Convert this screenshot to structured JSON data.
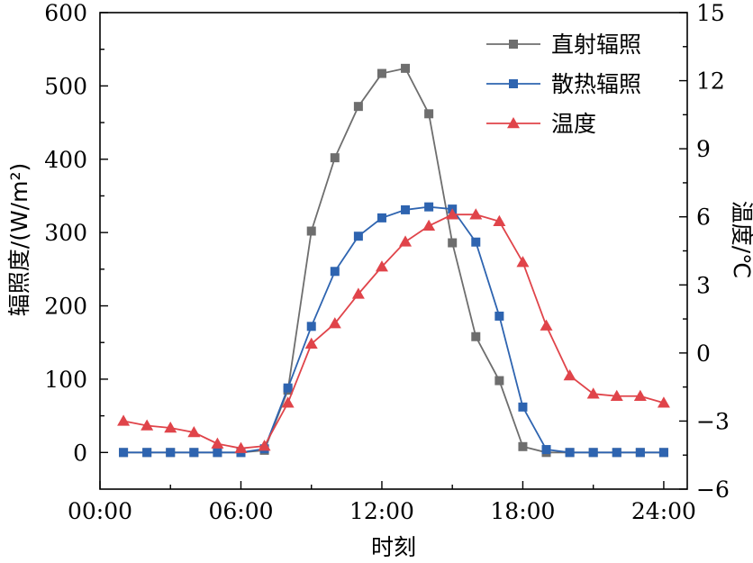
{
  "chart_data": {
    "type": "line",
    "xlabel": "时刻",
    "ylabel_left": "辐照度/(W/m²)",
    "ylabel_right": "温度/℃",
    "x_ticks": [
      "00:00",
      "06:00",
      "12:00",
      "18:00",
      "24:00"
    ],
    "xlim": [
      0,
      25
    ],
    "ylim_left": [
      -50,
      600
    ],
    "ylim_right": [
      -6,
      15
    ],
    "y_ticks_left": [
      0,
      100,
      200,
      300,
      400,
      500,
      600
    ],
    "y_ticks_right": [
      -6,
      -3,
      0,
      3,
      6,
      9,
      12,
      15
    ],
    "grid": false,
    "legend_position": "top-right",
    "x": [
      1,
      2,
      3,
      4,
      5,
      6,
      7,
      8,
      9,
      10,
      11,
      12,
      13,
      14,
      15,
      16,
      17,
      18,
      19,
      20,
      21,
      22,
      23,
      24
    ],
    "series": [
      {
        "name": "直射辐照",
        "axis": "left",
        "color": "#6e6e6e",
        "marker": "square",
        "values": [
          0,
          0,
          0,
          0,
          0,
          0,
          3,
          85,
          302,
          402,
          472,
          517,
          524,
          462,
          286,
          158,
          98,
          8,
          0,
          0,
          0,
          0,
          0,
          0
        ]
      },
      {
        "name": "散热辐照",
        "axis": "left",
        "color": "#2e64b0",
        "marker": "square",
        "values": [
          0,
          0,
          0,
          0,
          0,
          0,
          5,
          88,
          172,
          247,
          295,
          320,
          331,
          335,
          332,
          287,
          186,
          62,
          4,
          0,
          0,
          0,
          0,
          0
        ]
      },
      {
        "name": "温度",
        "axis": "right",
        "color": "#e0444a",
        "marker": "triangle",
        "values": [
          -3.0,
          -3.2,
          -3.3,
          -3.5,
          -4.0,
          -4.2,
          -4.1,
          -2.2,
          0.4,
          1.3,
          2.6,
          3.8,
          4.9,
          5.6,
          6.1,
          6.1,
          5.8,
          4.0,
          1.2,
          -1.0,
          -1.8,
          -1.9,
          -1.9,
          -2.2
        ]
      }
    ]
  }
}
